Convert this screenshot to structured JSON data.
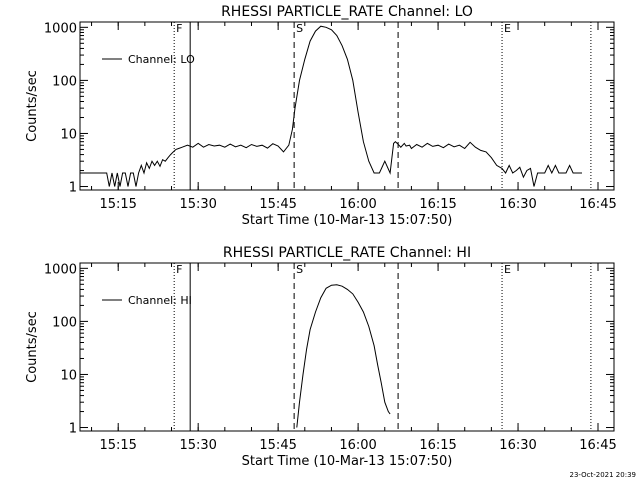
{
  "timestamp": "23-Oct-2021 20:39",
  "chart_data": [
    {
      "type": "line",
      "title": "RHESSI PARTICLE_RATE Channel: LO",
      "xlabel": "Start Time (10-Mar-13 15:07:50)",
      "ylabel": "Counts/sec",
      "yscale": "log",
      "ylim": [
        1,
        1000
      ],
      "xlim": [
        "15:07:50",
        "16:48:00"
      ],
      "x_ticks": [
        "15:15",
        "15:30",
        "15:45",
        "16:00",
        "16:15",
        "16:30",
        "16:45"
      ],
      "y_ticks": [
        "1",
        "10",
        "100",
        "1000"
      ],
      "legend": {
        "position": "top-left",
        "entries": [
          "Channel: LO"
        ]
      },
      "markers": [
        {
          "label": "F",
          "time": "15:25:30",
          "style": "dotted"
        },
        {
          "label": "",
          "time": "15:28:30",
          "style": "solid"
        },
        {
          "label": "S",
          "time": "15:48:00",
          "style": "dashed"
        },
        {
          "label": "",
          "time": "16:07:30",
          "style": "dashed"
        },
        {
          "label": "E",
          "time": "16:27:00",
          "style": "dotted"
        },
        {
          "label": "",
          "time": "16:43:40",
          "style": "dotted"
        }
      ],
      "series": [
        {
          "name": "Channel: LO",
          "x": [
            "15:07:50",
            "15:12:00",
            "15:12:50",
            "15:13:20",
            "15:13:50",
            "15:14:20",
            "15:14:50",
            "15:15:20",
            "15:15:50",
            "15:16:20",
            "15:16:50",
            "15:17:20",
            "15:17:50",
            "15:18:20",
            "15:18:50",
            "15:19:20",
            "15:19:50",
            "15:20:20",
            "15:20:50",
            "15:21:20",
            "15:21:50",
            "15:22:20",
            "15:22:50",
            "15:23:20",
            "15:23:50",
            "15:24:20",
            "15:24:50",
            "15:25:20",
            "15:25:50",
            "15:26:20",
            "15:27:00",
            "15:28:00",
            "15:29:00",
            "15:30:00",
            "15:31:00",
            "15:32:00",
            "15:33:00",
            "15:34:00",
            "15:35:00",
            "15:36:00",
            "15:37:00",
            "15:38:00",
            "15:39:00",
            "15:40:00",
            "15:41:00",
            "15:42:00",
            "15:43:00",
            "15:44:00",
            "15:45:00",
            "15:46:00",
            "15:47:00",
            "15:47:40",
            "15:48:10",
            "15:49:00",
            "15:50:00",
            "15:51:00",
            "15:52:00",
            "15:53:00",
            "15:54:00",
            "15:55:00",
            "15:56:00",
            "15:57:00",
            "15:58:00",
            "15:59:00",
            "16:00:00",
            "16:01:00",
            "16:02:00",
            "16:03:00",
            "16:04:00",
            "16:05:00",
            "16:06:00",
            "16:06:40",
            "16:07:00",
            "16:07:40",
            "16:08:00",
            "16:08:40",
            "16:09:00",
            "16:09:40",
            "16:10:00",
            "16:11:00",
            "16:12:00",
            "16:13:00",
            "16:14:00",
            "16:15:00",
            "16:16:00",
            "16:17:00",
            "16:18:00",
            "16:19:00",
            "16:20:00",
            "16:21:00",
            "16:22:00",
            "16:23:00",
            "16:24:00",
            "16:25:00",
            "16:26:00",
            "16:27:00",
            "16:27:40",
            "16:28:20",
            "16:29:00",
            "16:29:40",
            "16:30:20",
            "16:31:00",
            "16:31:40",
            "16:32:20",
            "16:33:00",
            "16:33:40",
            "16:34:20",
            "16:35:00",
            "16:35:40",
            "16:36:20",
            "16:37:00",
            "16:37:40",
            "16:38:20",
            "16:39:00",
            "16:39:40",
            "16:40:20",
            "16:41:00",
            "16:42:00"
          ],
          "y": [
            1.8,
            1.8,
            1.8,
            1.0,
            1.8,
            1.0,
            1.8,
            1.0,
            1.8,
            1.8,
            1.0,
            1.8,
            1.8,
            1.0,
            1.8,
            2.5,
            1.8,
            2.8,
            2.2,
            3.0,
            2.5,
            3.0,
            2.4,
            3.2,
            3.0,
            3.5,
            4.0,
            4.5,
            5.0,
            5.2,
            5.5,
            6.0,
            5.5,
            6.5,
            5.5,
            6.2,
            5.8,
            6.0,
            5.5,
            6.3,
            5.6,
            6.0,
            5.4,
            6.2,
            5.7,
            6.0,
            5.3,
            6.4,
            5.8,
            4.5,
            6.0,
            12,
            30,
            100,
            250,
            550,
            850,
            1050,
            1000,
            900,
            700,
            450,
            250,
            100,
            25,
            7,
            3,
            1.8,
            1.8,
            3.0,
            1.8,
            6.5,
            7.0,
            6.0,
            5.5,
            6.5,
            5.8,
            6.0,
            5.2,
            6.2,
            5.5,
            6.5,
            5.7,
            6.0,
            5.4,
            6.3,
            5.6,
            6.0,
            5.2,
            6.8,
            5.5,
            4.8,
            4.5,
            3.5,
            2.5,
            2.2,
            1.8,
            2.5,
            1.8,
            2.0,
            2.3,
            1.5,
            2.0,
            2.2,
            1.0,
            1.8,
            1.8,
            1.8,
            2.5,
            1.8,
            2.5,
            1.8,
            1.8,
            1.8,
            2.5,
            1.8,
            1.8,
            1.8
          ]
        }
      ]
    },
    {
      "type": "line",
      "title": "RHESSI PARTICLE_RATE Channel: HI",
      "xlabel": "Start Time (10-Mar-13 15:07:50)",
      "ylabel": "Counts/sec",
      "yscale": "log",
      "ylim": [
        1,
        1000
      ],
      "xlim": [
        "15:07:50",
        "16:48:00"
      ],
      "x_ticks": [
        "15:15",
        "15:30",
        "15:45",
        "16:00",
        "16:15",
        "16:30",
        "16:45"
      ],
      "y_ticks": [
        "1",
        "10",
        "100",
        "1000"
      ],
      "legend": {
        "position": "top-left",
        "entries": [
          "Channel: HI"
        ]
      },
      "markers": [
        {
          "label": "F",
          "time": "15:25:30",
          "style": "dotted"
        },
        {
          "label": "",
          "time": "15:28:30",
          "style": "solid"
        },
        {
          "label": "S",
          "time": "15:48:00",
          "style": "dashed"
        },
        {
          "label": "",
          "time": "16:07:30",
          "style": "dashed"
        },
        {
          "label": "E",
          "time": "16:27:00",
          "style": "dotted"
        },
        {
          "label": "",
          "time": "16:43:40",
          "style": "dotted"
        }
      ],
      "series": [
        {
          "name": "Channel: HI",
          "x": [
            "15:48:30",
            "15:49:00",
            "15:49:40",
            "15:50:20",
            "15:51:00",
            "15:52:00",
            "15:53:00",
            "15:54:00",
            "15:55:00",
            "15:56:00",
            "15:57:00",
            "15:58:00",
            "15:59:00",
            "16:00:00",
            "16:01:00",
            "16:02:00",
            "16:03:00",
            "16:03:40",
            "16:04:20",
            "16:05:00",
            "16:05:40",
            "16:06:00"
          ],
          "y": [
            1.0,
            3,
            10,
            30,
            70,
            150,
            280,
            420,
            480,
            490,
            460,
            400,
            330,
            230,
            150,
            80,
            35,
            15,
            7,
            3,
            2,
            1.8
          ]
        }
      ]
    }
  ]
}
